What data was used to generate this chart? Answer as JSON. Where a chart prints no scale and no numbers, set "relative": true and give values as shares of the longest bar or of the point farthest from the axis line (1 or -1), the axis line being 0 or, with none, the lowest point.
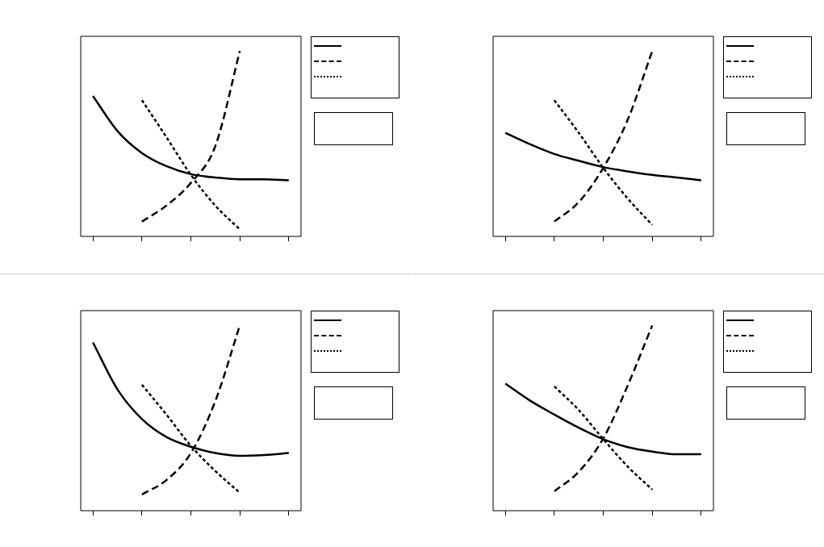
{
  "chart_data": [
    {
      "type": "line",
      "relative": true,
      "tick_labels": false,
      "marker": "none",
      "grid": false,
      "categories": [
        null,
        null,
        null,
        null,
        null,
        null,
        null,
        null,
        null
      ],
      "series": [
        {
          "color": "#000000",
          "line_style": "solid",
          "values": [
            0.758,
            0.569,
            0.45,
            0.379,
            0.336,
            0.318,
            0.308,
            0.308,
            0.303
          ]
        },
        {
          "color": "#000000",
          "line_style": "dashed",
          "values": [
            null,
            null,
            0.08,
            0.166,
            0.289,
            0.488,
            1.0,
            null,
            null
          ]
        },
        {
          "color": "#000000",
          "line_style": "dotted",
          "values": [
            null,
            null,
            0.735,
            0.536,
            0.332,
            0.166,
            0.038,
            null,
            null
          ]
        }
      ]
    },
    {
      "type": "line",
      "relative": true,
      "tick_labels": false,
      "marker": "none",
      "grid": false,
      "categories": [
        null,
        null,
        null,
        null,
        null,
        null,
        null,
        null,
        null
      ],
      "series": [
        {
          "color": "#000000",
          "line_style": "solid",
          "values": [
            0.559,
            0.498,
            0.445,
            0.408,
            0.374,
            0.351,
            0.332,
            0.318,
            0.303
          ]
        },
        {
          "color": "#000000",
          "line_style": "dashed",
          "values": [
            null,
            null,
            0.08,
            0.185,
            0.37,
            0.63,
            1.0,
            null,
            null
          ]
        },
        {
          "color": "#000000",
          "line_style": "dotted",
          "values": [
            null,
            null,
            0.735,
            0.559,
            0.37,
            0.204,
            0.062,
            null,
            null
          ]
        }
      ]
    },
    {
      "type": "line",
      "relative": true,
      "tick_labels": false,
      "marker": "none",
      "grid": false,
      "categories": [
        null,
        null,
        null,
        null,
        null,
        null,
        null,
        null,
        null
      ],
      "series": [
        {
          "color": "#000000",
          "line_style": "solid",
          "values": [
            0.908,
            0.655,
            0.495,
            0.398,
            0.345,
            0.311,
            0.296,
            0.301,
            0.311
          ]
        },
        {
          "color": "#000000",
          "line_style": "dashed",
          "values": [
            null,
            null,
            0.087,
            0.165,
            0.311,
            0.592,
            1.0,
            null,
            null
          ]
        },
        {
          "color": "#000000",
          "line_style": "dotted",
          "values": [
            null,
            null,
            0.68,
            0.519,
            0.35,
            0.214,
            0.097,
            null,
            null
          ]
        }
      ]
    },
    {
      "type": "line",
      "relative": true,
      "tick_labels": false,
      "marker": "none",
      "grid": false,
      "categories": [
        null,
        null,
        null,
        null,
        null,
        null,
        null,
        null,
        null
      ],
      "series": [
        {
          "color": "#000000",
          "line_style": "solid",
          "values": [
            0.686,
            0.595,
            0.519,
            0.448,
            0.386,
            0.343,
            0.319,
            0.305,
            0.305
          ]
        },
        {
          "color": "#000000",
          "line_style": "dashed",
          "values": [
            null,
            null,
            0.105,
            0.21,
            0.39,
            0.676,
            1.0,
            null,
            null
          ]
        },
        {
          "color": "#000000",
          "line_style": "dotted",
          "values": [
            null,
            null,
            0.671,
            0.543,
            0.386,
            0.238,
            0.114,
            null,
            null
          ]
        }
      ]
    }
  ]
}
